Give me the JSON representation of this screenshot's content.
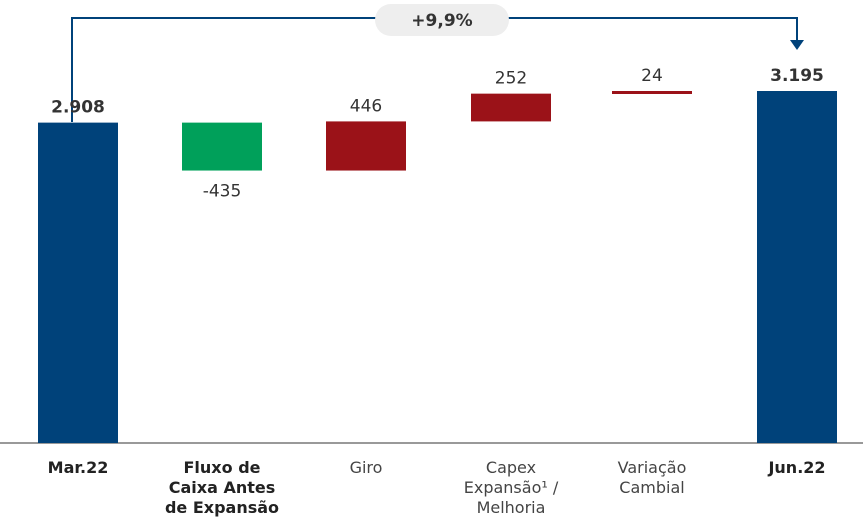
{
  "chart_data": {
    "type": "waterfall",
    "categories": [
      "Mar.22",
      "Fluxo de Caixa Antes de Expansão",
      "Giro",
      "Capex Expansão¹ / Melhoria",
      "Variação Cambial",
      "Jun.22"
    ],
    "values": [
      2908,
      -435,
      446,
      252,
      24,
      3195
    ],
    "value_labels": [
      "2.908",
      "-435",
      "446",
      "252",
      "24",
      "3.195"
    ],
    "colors": [
      "#00427a",
      "#00a05a",
      "#9b1218",
      "#9b1218",
      "#9b1218",
      "#00427a"
    ],
    "annotation": "+9,9%"
  }
}
